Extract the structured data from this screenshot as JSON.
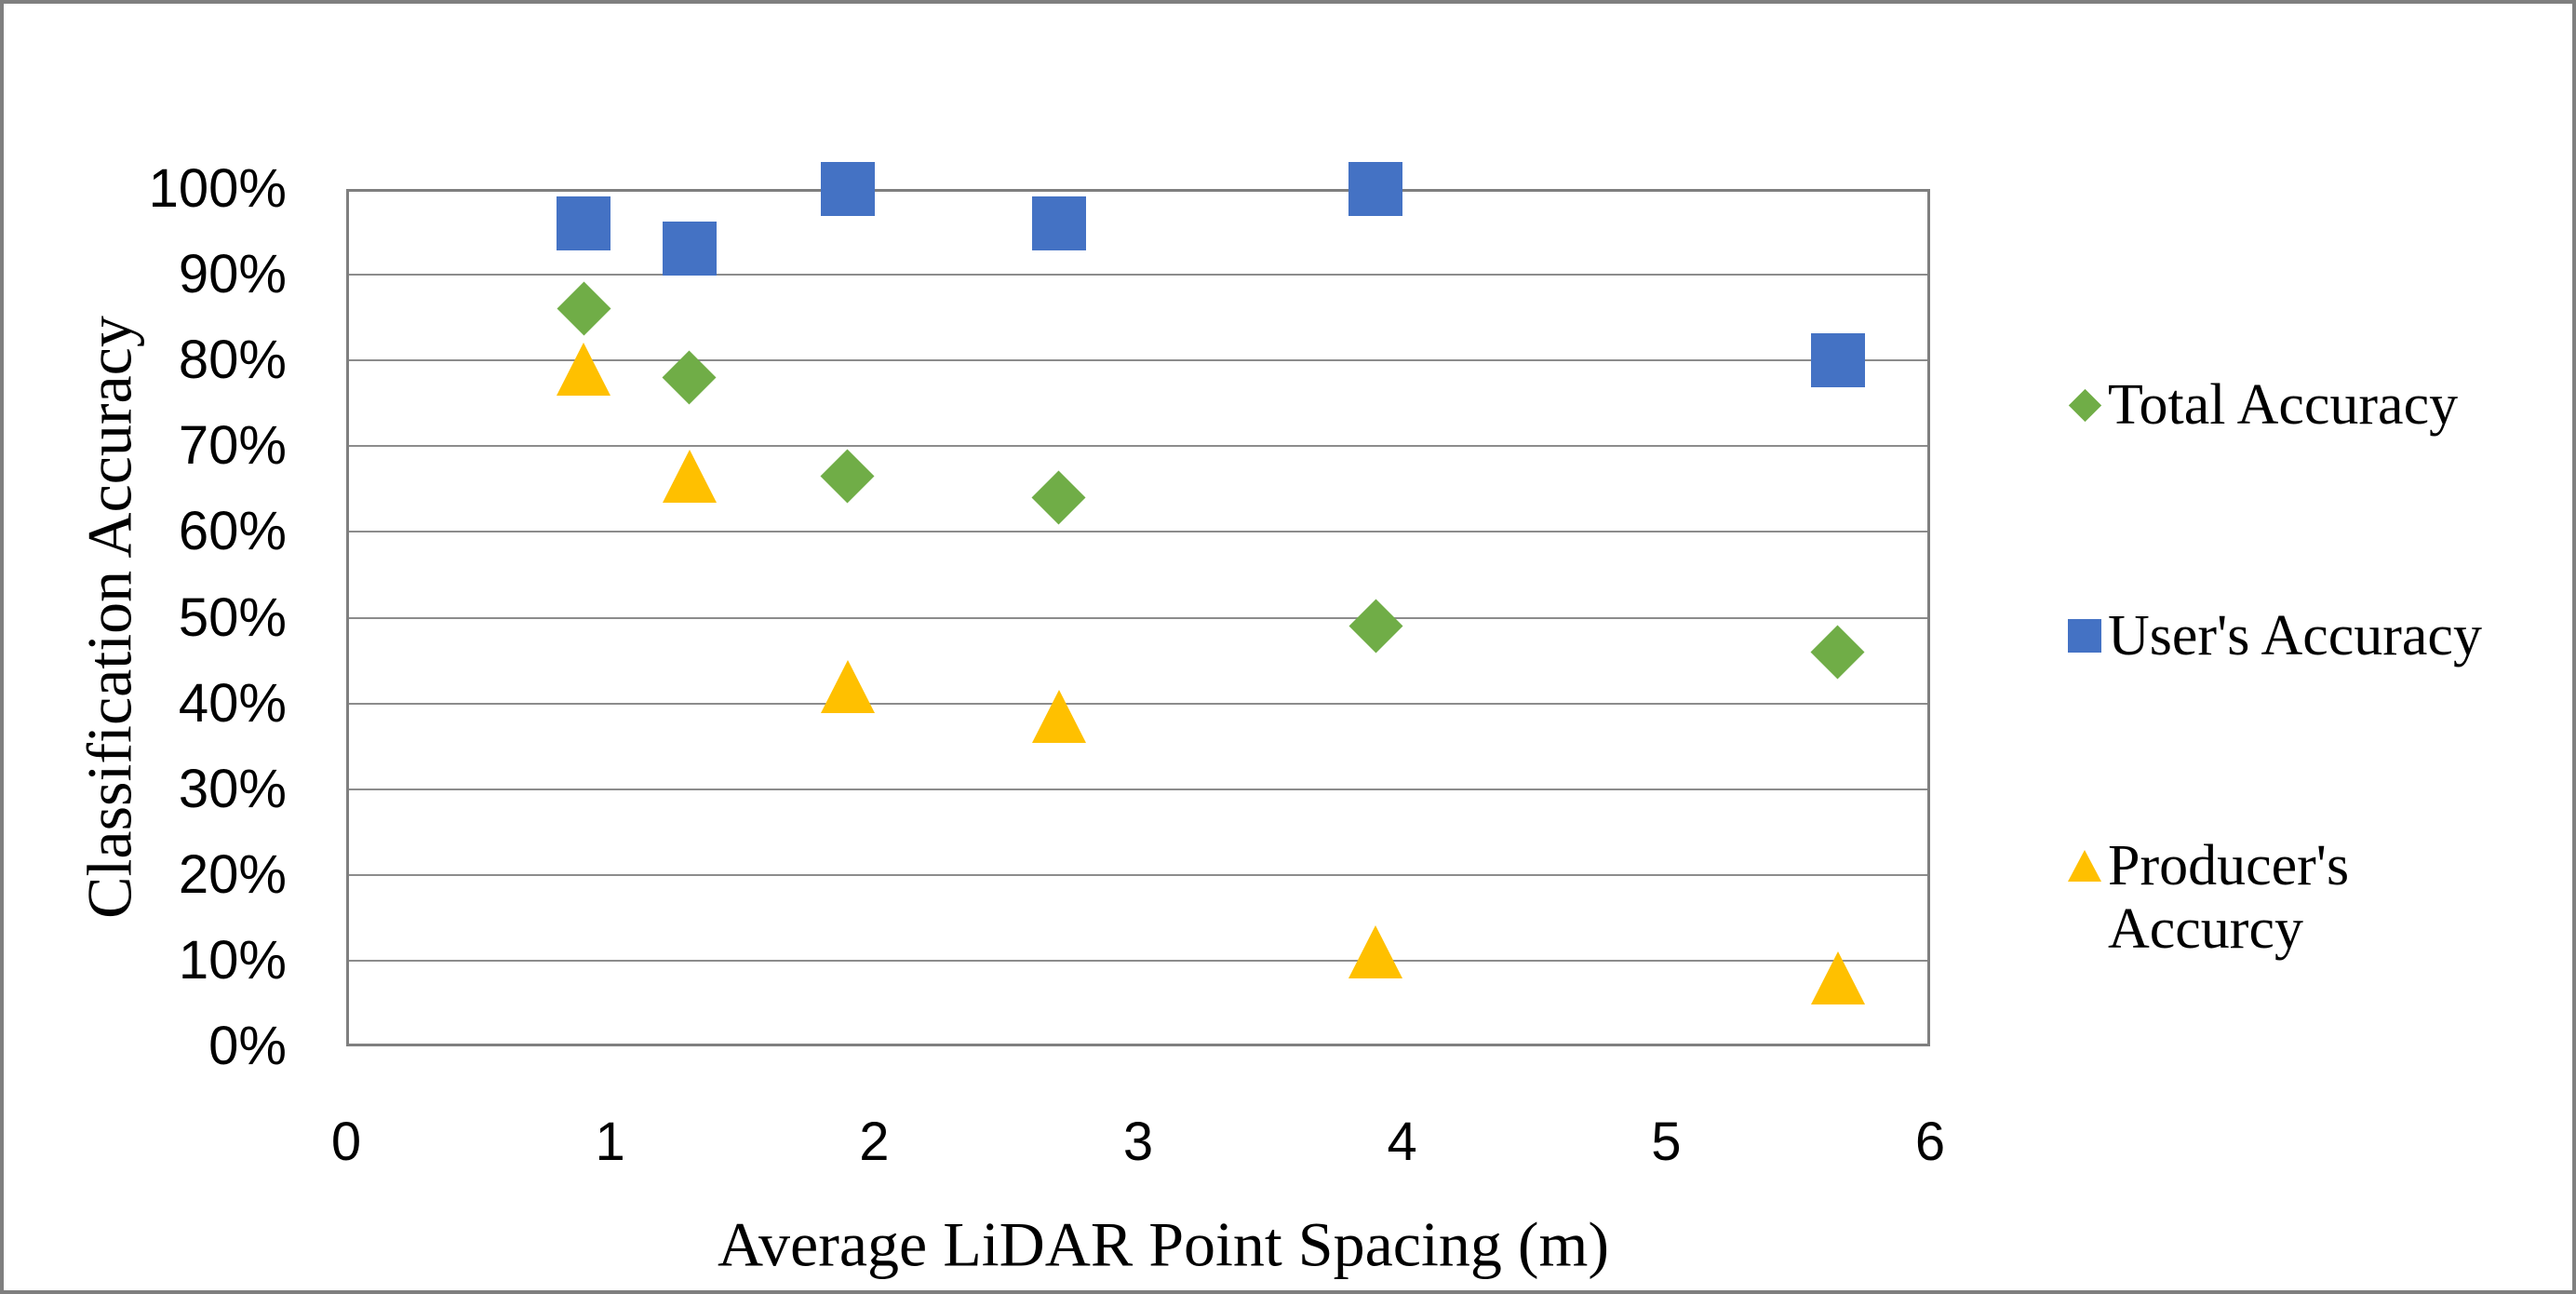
{
  "chart_data": {
    "type": "scatter",
    "title": "",
    "x": [
      0.9,
      1.3,
      1.9,
      2.7,
      3.9,
      5.65
    ],
    "series": [
      {
        "name": "Total Accuracy",
        "label_lines": [
          "Total Accuracy"
        ],
        "marker": "diamond",
        "color": "#70AD47",
        "values": [
          86,
          78,
          66.5,
          64,
          49,
          46
        ]
      },
      {
        "name": "User's Accuracy",
        "label_lines": [
          "User's Accuracy"
        ],
        "marker": "square",
        "color": "#4472C4",
        "values": [
          96,
          93,
          100,
          96,
          100,
          80
        ]
      },
      {
        "name": "Producer's Accurcy",
        "label_lines": [
          "Producer's",
          "Accurcy"
        ],
        "marker": "triangle",
        "color": "#FFC000",
        "values": [
          79,
          66.5,
          42,
          38.5,
          11,
          8
        ]
      }
    ],
    "xlabel": "Average LiDAR Point Spacing (m)",
    "ylabel": "Classification Accuracy",
    "xlim": [
      0,
      6
    ],
    "ylim": [
      0,
      100
    ],
    "x_ticks": [
      {
        "label": "0",
        "value": 0
      },
      {
        "label": "1",
        "value": 1
      },
      {
        "label": "2",
        "value": 2
      },
      {
        "label": "3",
        "value": 3
      },
      {
        "label": "4",
        "value": 4
      },
      {
        "label": "5",
        "value": 5
      },
      {
        "label": "6",
        "value": 6
      }
    ],
    "y_ticks": [
      {
        "label": "100%",
        "value": 100
      },
      {
        "label": "90%",
        "value": 90
      },
      {
        "label": "80%",
        "value": 80
      },
      {
        "label": "70%",
        "value": 70
      },
      {
        "label": "60%",
        "value": 60
      },
      {
        "label": "50%",
        "value": 50
      },
      {
        "label": "40%",
        "value": 40
      },
      {
        "label": "30%",
        "value": 30
      },
      {
        "label": "20%",
        "value": 20
      },
      {
        "label": "10%",
        "value": 10
      },
      {
        "label": "0%",
        "value": 0
      }
    ],
    "grid": "horizontal",
    "legend_position": "right"
  },
  "colors": {
    "accent_blue": "#4472C4",
    "accent_green": "#70AD47",
    "accent_yellow": "#FFC000",
    "gridline": "#8C8C8C",
    "plot_border": "#7F7F7F",
    "frame_border": "#7F7F7F",
    "text": "#000000",
    "background": "#FFFFFF"
  }
}
